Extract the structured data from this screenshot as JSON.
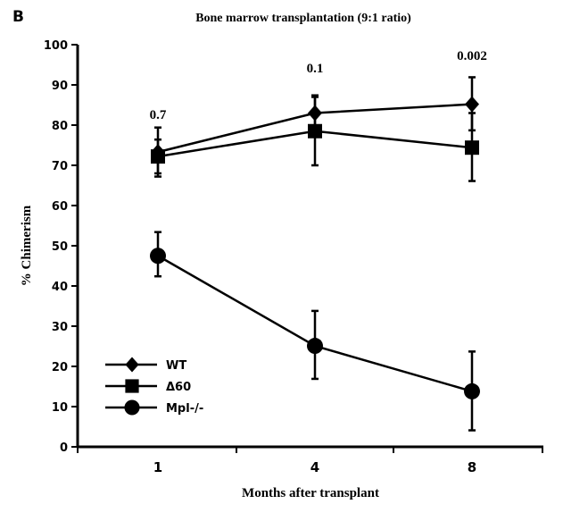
{
  "chart_data": {
    "type": "line",
    "panel_label": "B",
    "title": "Bone marrow transplantation (9:1 ratio)",
    "xlabel": "Months after transplant",
    "ylabel": "% Chimerism",
    "categories": [
      "1",
      "4",
      "8"
    ],
    "ylim": [
      0,
      100
    ],
    "yticks": [
      "0",
      "10",
      "20",
      "30",
      "40",
      "50",
      "60",
      "70",
      "80",
      "90",
      "100"
    ],
    "grid": false,
    "legend_position": "bottom-left",
    "annotations": [
      "0.7",
      "0.1",
      "0.002"
    ],
    "series": [
      {
        "name": "WT",
        "marker": "diamond",
        "values": [
          73.3,
          83.0,
          85.2
        ],
        "err_low": [
          67.2,
          78.6,
          78.7
        ],
        "err_high": [
          79.4,
          87.4,
          91.9
        ]
      },
      {
        "name": "Δ60",
        "marker": "square",
        "values": [
          72.2,
          78.5,
          74.4
        ],
        "err_low": [
          68.0,
          70.0,
          66.1
        ],
        "err_high": [
          76.4,
          87.0,
          83.0
        ]
      },
      {
        "name": "Mpl-/-",
        "marker": "circle",
        "values": [
          47.5,
          25.1,
          13.8
        ],
        "err_low": [
          42.4,
          16.9,
          4.1
        ],
        "err_high": [
          53.4,
          33.8,
          23.7
        ]
      }
    ]
  }
}
